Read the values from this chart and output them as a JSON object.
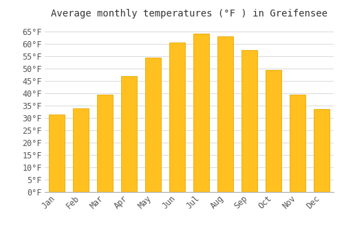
{
  "title": "Average monthly temperatures (°F ) in Greifensee",
  "months": [
    "Jan",
    "Feb",
    "Mar",
    "Apr",
    "May",
    "Jun",
    "Jul",
    "Aug",
    "Sep",
    "Oct",
    "Nov",
    "Dec"
  ],
  "values": [
    31.5,
    34.0,
    39.5,
    47.0,
    54.5,
    60.5,
    64.0,
    63.0,
    57.5,
    49.5,
    39.5,
    33.5
  ],
  "bar_color": "#FFC020",
  "bar_edge_color": "#E8A800",
  "background_color": "#ffffff",
  "grid_color": "#dddddd",
  "ylim": [
    0,
    68
  ],
  "yticks": [
    0,
    5,
    10,
    15,
    20,
    25,
    30,
    35,
    40,
    45,
    50,
    55,
    60,
    65
  ],
  "title_fontsize": 10,
  "tick_fontsize": 8.5,
  "tick_font": "monospace"
}
